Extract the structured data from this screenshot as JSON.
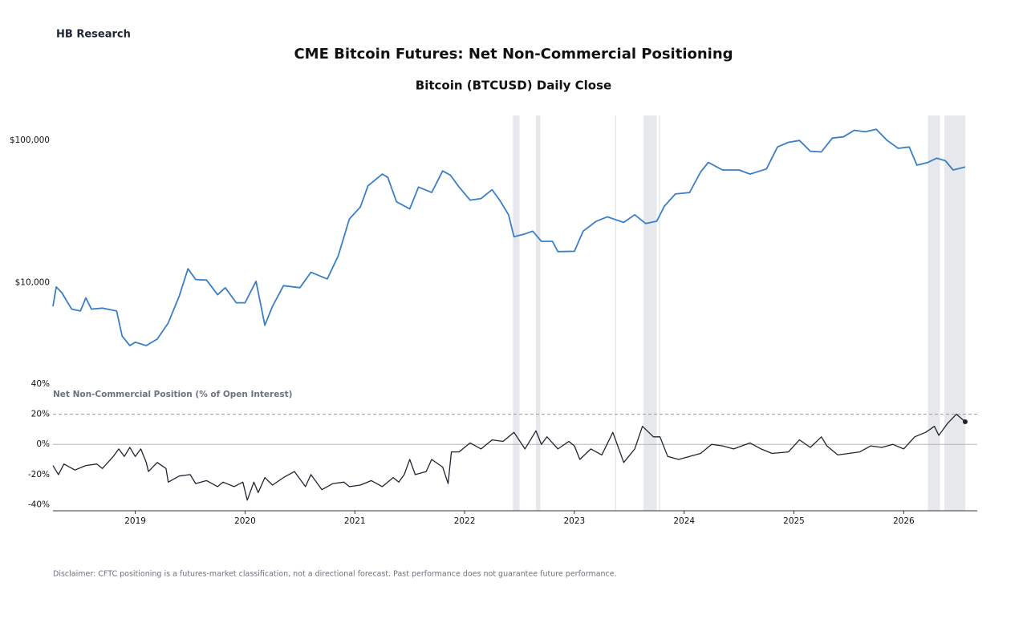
{
  "brand": "HB Research",
  "title": "CME Bitcoin Futures: Net Non-Commercial Positioning",
  "disclaimer": "Disclaimer: CFTC positioning is a futures-market classification, not a directional forecast. Past performance does not guarantee future performance.",
  "chart_data": [
    {
      "type": "line",
      "title": "Bitcoin (BTCUSD) Daily Close",
      "color": "#3a7fc4",
      "log_scale": true,
      "xlim": [
        2018.25,
        2026.67
      ],
      "ylim": [
        3000,
        150000
      ],
      "yticks": [
        {
          "value": 10000,
          "label": "$10,000"
        },
        {
          "value": 100000,
          "label": "$100,000"
        }
      ],
      "shaded_periods": [
        [
          2022.44,
          2022.5
        ],
        [
          2022.65,
          2022.69
        ],
        [
          2023.37,
          2023.38
        ],
        [
          2023.63,
          2023.75
        ],
        [
          2023.77,
          2023.78
        ],
        [
          2026.22,
          2026.33
        ],
        [
          2026.37,
          2026.56
        ]
      ],
      "x": [
        2018.25,
        2018.28,
        2018.33,
        2018.42,
        2018.5,
        2018.55,
        2018.6,
        2018.7,
        2018.83,
        2018.88,
        2018.95,
        2019.0,
        2019.1,
        2019.2,
        2019.3,
        2019.4,
        2019.48,
        2019.55,
        2019.65,
        2019.75,
        2019.82,
        2019.92,
        2020.0,
        2020.1,
        2020.18,
        2020.25,
        2020.35,
        2020.5,
        2020.6,
        2020.75,
        2020.85,
        2020.95,
        2021.05,
        2021.12,
        2021.25,
        2021.3,
        2021.38,
        2021.5,
        2021.58,
        2021.7,
        2021.8,
        2021.87,
        2021.95,
        2022.05,
        2022.15,
        2022.25,
        2022.32,
        2022.4,
        2022.45,
        2022.55,
        2022.62,
        2022.7,
        2022.8,
        2022.85,
        2023.0,
        2023.08,
        2023.2,
        2023.3,
        2023.45,
        2023.55,
        2023.65,
        2023.75,
        2023.82,
        2023.92,
        2024.05,
        2024.15,
        2024.22,
        2024.35,
        2024.5,
        2024.6,
        2024.75,
        2024.85,
        2024.95,
        2025.05,
        2025.15,
        2025.25,
        2025.35,
        2025.45,
        2025.55,
        2025.65,
        2025.75,
        2025.85,
        2025.95,
        2026.05,
        2026.12,
        2026.22,
        2026.3,
        2026.38,
        2026.45,
        2026.56
      ],
      "values": [
        6800,
        9300,
        8500,
        6500,
        6300,
        7800,
        6500,
        6600,
        6300,
        4200,
        3600,
        3800,
        3600,
        4000,
        5200,
        8000,
        12500,
        10500,
        10400,
        8200,
        9200,
        7200,
        7200,
        10200,
        5000,
        6800,
        9500,
        9200,
        11800,
        10600,
        15500,
        28000,
        34000,
        48000,
        58000,
        55000,
        37000,
        33000,
        47000,
        43000,
        61000,
        57000,
        47000,
        38000,
        39000,
        45000,
        38000,
        30000,
        21000,
        22000,
        23000,
        19500,
        19500,
        16500,
        16600,
        23000,
        27000,
        29000,
        26500,
        30000,
        26000,
        27000,
        34500,
        42000,
        43000,
        60000,
        70000,
        62000,
        62000,
        58000,
        63000,
        90000,
        97000,
        100000,
        84000,
        83000,
        104000,
        106000,
        118000,
        115000,
        120000,
        100000,
        88000,
        90000,
        67000,
        70000,
        75000,
        72000,
        62000,
        65000
      ]
    },
    {
      "type": "line",
      "title": "Net Non-Commercial Position (% of Open Interest)",
      "color": "#1f2430",
      "xlim": [
        2018.25,
        2026.67
      ],
      "xticks": [
        2019,
        2020,
        2021,
        2022,
        2023,
        2024,
        2025,
        2026
      ],
      "ylim": [
        -44,
        40
      ],
      "yticks": [
        {
          "value": -40,
          "label": "-40%"
        },
        {
          "value": -20,
          "label": "-20%"
        },
        {
          "value": 0,
          "label": "0%"
        },
        {
          "value": 20,
          "label": "20%"
        },
        {
          "value": 40,
          "label": "40%"
        }
      ],
      "reference_line": 20,
      "zero_line": true,
      "highlight_last": true,
      "x": [
        2018.25,
        2018.3,
        2018.35,
        2018.45,
        2018.55,
        2018.65,
        2018.7,
        2018.8,
        2018.85,
        2018.9,
        2018.95,
        2019.0,
        2019.05,
        2019.1,
        2019.12,
        2019.2,
        2019.28,
        2019.3,
        2019.4,
        2019.5,
        2019.55,
        2019.65,
        2019.75,
        2019.8,
        2019.9,
        2019.98,
        2020.02,
        2020.08,
        2020.12,
        2020.18,
        2020.25,
        2020.35,
        2020.45,
        2020.55,
        2020.6,
        2020.7,
        2020.8,
        2020.9,
        2020.95,
        2021.05,
        2021.15,
        2021.25,
        2021.35,
        2021.4,
        2021.45,
        2021.5,
        2021.55,
        2021.65,
        2021.7,
        2021.8,
        2021.85,
        2021.88,
        2021.95,
        2022.05,
        2022.15,
        2022.25,
        2022.35,
        2022.45,
        2022.55,
        2022.65,
        2022.7,
        2022.75,
        2022.85,
        2022.95,
        2023.0,
        2023.05,
        2023.15,
        2023.25,
        2023.35,
        2023.45,
        2023.55,
        2023.62,
        2023.72,
        2023.78,
        2023.85,
        2023.95,
        2024.05,
        2024.15,
        2024.25,
        2024.35,
        2024.45,
        2024.6,
        2024.7,
        2024.8,
        2024.95,
        2025.05,
        2025.15,
        2025.25,
        2025.3,
        2025.4,
        2025.5,
        2025.6,
        2025.7,
        2025.8,
        2025.9,
        2026.0,
        2026.1,
        2026.2,
        2026.28,
        2026.32,
        2026.4,
        2026.48,
        2026.56
      ],
      "values": [
        -14,
        -20,
        -13,
        -17,
        -14,
        -13,
        -16,
        -8,
        -3,
        -8,
        -2,
        -8,
        -3,
        -12,
        -18,
        -12,
        -16,
        -25,
        -21,
        -20,
        -26,
        -24,
        -28,
        -25,
        -28,
        -25,
        -37,
        -25,
        -32,
        -22,
        -27,
        -22,
        -18,
        -28,
        -20,
        -30,
        -26,
        -25,
        -28,
        -27,
        -24,
        -28,
        -22,
        -25,
        -20,
        -10,
        -20,
        -18,
        -10,
        -15,
        -26,
        -5,
        -5,
        1,
        -3,
        3,
        2,
        8,
        -3,
        9,
        0,
        5,
        -3,
        2,
        -1,
        -10,
        -3,
        -7,
        8,
        -12,
        -3,
        12,
        5,
        5,
        -8,
        -10,
        -8,
        -6,
        0,
        -1,
        -3,
        1,
        -3,
        -6,
        -5,
        3,
        -2,
        5,
        -1,
        -7,
        -6,
        -5,
        -1,
        -2,
        0,
        -3,
        5,
        8,
        12,
        6,
        14,
        20,
        15
      ]
    }
  ]
}
